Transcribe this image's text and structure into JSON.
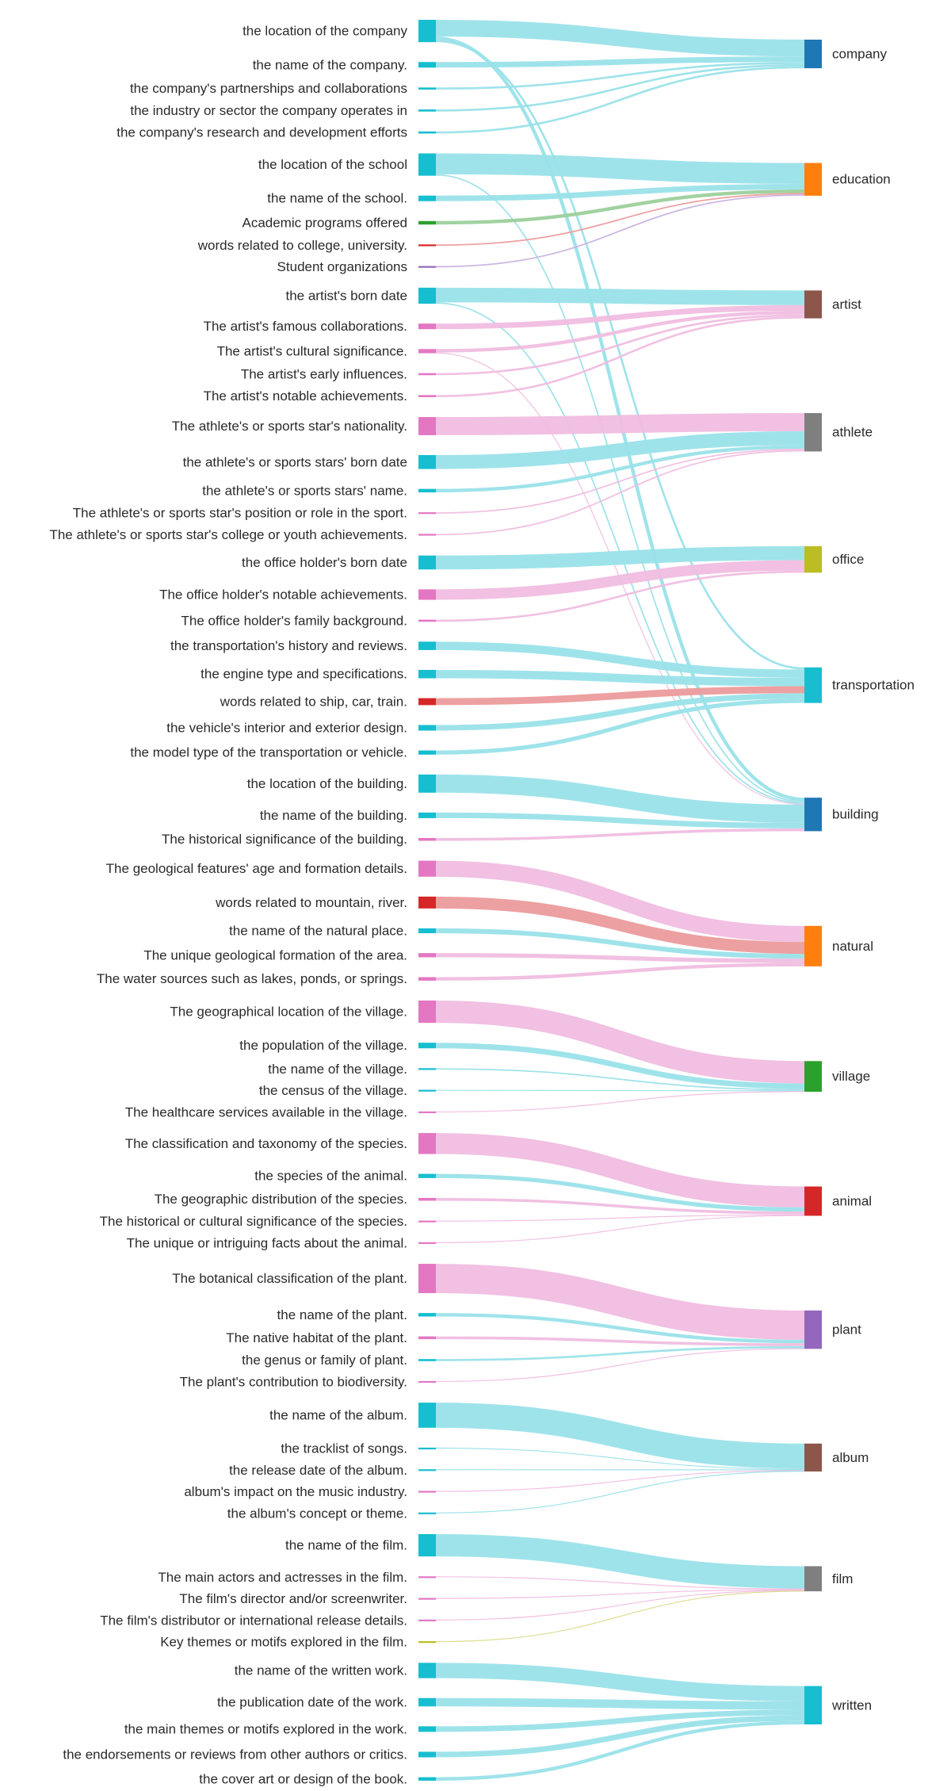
{
  "chart_data": {
    "type": "sankey",
    "targets": [
      {
        "name": "company",
        "color": "#1f77b4"
      },
      {
        "name": "education",
        "color": "#ff7f0e"
      },
      {
        "name": "artist",
        "color": "#8c564b"
      },
      {
        "name": "athlete",
        "color": "#7f7f7f"
      },
      {
        "name": "office",
        "color": "#bcbd22"
      },
      {
        "name": "transportation",
        "color": "#17becf"
      },
      {
        "name": "building",
        "color": "#1f77b4"
      },
      {
        "name": "natural",
        "color": "#ff7f0e"
      },
      {
        "name": "village",
        "color": "#2ca02c"
      },
      {
        "name": "animal",
        "color": "#d62728"
      },
      {
        "name": "plant",
        "color": "#9467bd"
      },
      {
        "name": "album",
        "color": "#8c564b"
      },
      {
        "name": "film",
        "color": "#7f7f7f"
      },
      {
        "name": "written",
        "color": "#17becf"
      }
    ],
    "sources": [
      {
        "label": "the location of the company",
        "color": "#17becf",
        "links": [
          {
            "target": "company",
            "value": 24
          },
          {
            "target": "building",
            "value": 5
          },
          {
            "target": "transportation",
            "value": 3
          }
        ]
      },
      {
        "label": "the name of the company.",
        "color": "#17becf",
        "links": [
          {
            "target": "company",
            "value": 8
          }
        ]
      },
      {
        "label": "the company's partnerships and collaborations",
        "color": "#17becf",
        "links": [
          {
            "target": "company",
            "value": 3
          }
        ]
      },
      {
        "label": "the industry or sector the company operates in",
        "color": "#17becf",
        "links": [
          {
            "target": "company",
            "value": 3
          }
        ]
      },
      {
        "label": "the company's research and development efforts",
        "color": "#17becf",
        "links": [
          {
            "target": "company",
            "value": 3
          }
        ]
      },
      {
        "label": "the location of the school",
        "color": "#17becf",
        "links": [
          {
            "target": "education",
            "value": 30
          },
          {
            "target": "building",
            "value": 2
          }
        ]
      },
      {
        "label": "the name of the school.",
        "color": "#17becf",
        "links": [
          {
            "target": "education",
            "value": 8
          }
        ]
      },
      {
        "label": "Academic programs offered",
        "color": "#2ca02c",
        "links": [
          {
            "target": "education",
            "value": 5
          }
        ]
      },
      {
        "label": "words related to college, university.",
        "color": "#d62728",
        "links": [
          {
            "target": "education",
            "value": 2
          }
        ]
      },
      {
        "label": "Student organizations",
        "color": "#9467bd",
        "links": [
          {
            "target": "education",
            "value": 2
          }
        ]
      },
      {
        "label": "the artist's born date",
        "color": "#17becf",
        "links": [
          {
            "target": "artist",
            "value": 21
          },
          {
            "target": "building",
            "value": 2
          }
        ]
      },
      {
        "label": "The artist's famous collaborations.",
        "color": "#e377c2",
        "links": [
          {
            "target": "artist",
            "value": 8
          }
        ]
      },
      {
        "label": "The artist's cultural significance.",
        "color": "#e377c2",
        "links": [
          {
            "target": "artist",
            "value": 5
          },
          {
            "target": "building",
            "value": 1
          }
        ]
      },
      {
        "label": "The artist's early influences.",
        "color": "#e377c2",
        "links": [
          {
            "target": "artist",
            "value": 3
          }
        ]
      },
      {
        "label": "The artist's notable achievements.",
        "color": "#e377c2",
        "links": [
          {
            "target": "artist",
            "value": 3
          }
        ]
      },
      {
        "label": "The athlete's or sports star's nationality.",
        "color": "#e377c2",
        "links": [
          {
            "target": "athlete",
            "value": 26
          }
        ]
      },
      {
        "label": "the athlete's or sports stars' born date",
        "color": "#17becf",
        "links": [
          {
            "target": "athlete",
            "value": 20
          }
        ]
      },
      {
        "label": "the athlete's or sports stars' name.",
        "color": "#17becf",
        "links": [
          {
            "target": "athlete",
            "value": 5
          }
        ]
      },
      {
        "label": "The athlete's or sports star's position or role in the sport.",
        "color": "#e377c2",
        "links": [
          {
            "target": "athlete",
            "value": 2
          }
        ]
      },
      {
        "label": "The athlete's or sports star's college or youth achievements.",
        "color": "#e377c2",
        "links": [
          {
            "target": "athlete",
            "value": 2
          }
        ]
      },
      {
        "label": "the office holder's born date",
        "color": "#17becf",
        "links": [
          {
            "target": "office",
            "value": 20
          }
        ]
      },
      {
        "label": "The office holder's notable achievements.",
        "color": "#e377c2",
        "links": [
          {
            "target": "office",
            "value": 15
          }
        ]
      },
      {
        "label": "The office holder's family background.",
        "color": "#e377c2",
        "links": [
          {
            "target": "office",
            "value": 3
          }
        ]
      },
      {
        "label": "the transportation's history and reviews.",
        "color": "#17becf",
        "links": [
          {
            "target": "transportation",
            "value": 12
          }
        ]
      },
      {
        "label": "the engine type and specifications.",
        "color": "#17becf",
        "links": [
          {
            "target": "transportation",
            "value": 12
          }
        ]
      },
      {
        "label": "words related to ship, car, train.",
        "color": "#d62728",
        "links": [
          {
            "target": "transportation",
            "value": 10
          }
        ]
      },
      {
        "label": "the vehicle's interior and exterior design.",
        "color": "#17becf",
        "links": [
          {
            "target": "transportation",
            "value": 8
          }
        ]
      },
      {
        "label": "the model type of the transportation or vehicle.",
        "color": "#17becf",
        "links": [
          {
            "target": "transportation",
            "value": 6
          }
        ]
      },
      {
        "label": "the location of the building.",
        "color": "#17becf",
        "links": [
          {
            "target": "building",
            "value": 26
          }
        ]
      },
      {
        "label": "the name of the building.",
        "color": "#17becf",
        "links": [
          {
            "target": "building",
            "value": 8
          }
        ]
      },
      {
        "label": "The historical significance of the building.",
        "color": "#e377c2",
        "links": [
          {
            "target": "building",
            "value": 4
          }
        ]
      },
      {
        "label": "The geological features' age and formation details.",
        "color": "#e377c2",
        "links": [
          {
            "target": "natural",
            "value": 23
          }
        ]
      },
      {
        "label": "words related to mountain, river.",
        "color": "#d62728",
        "links": [
          {
            "target": "natural",
            "value": 17
          }
        ]
      },
      {
        "label": "the name of the natural place.",
        "color": "#17becf",
        "links": [
          {
            "target": "natural",
            "value": 7
          }
        ]
      },
      {
        "label": "The unique geological formation of the area.",
        "color": "#e377c2",
        "links": [
          {
            "target": "natural",
            "value": 6
          }
        ]
      },
      {
        "label": "The water sources such as lakes, ponds, or springs.",
        "color": "#e377c2",
        "links": [
          {
            "target": "natural",
            "value": 5
          }
        ]
      },
      {
        "label": "The geographical location of the village.",
        "color": "#e377c2",
        "links": [
          {
            "target": "village",
            "value": 32
          }
        ]
      },
      {
        "label": "the population of the village.",
        "color": "#17becf",
        "links": [
          {
            "target": "village",
            "value": 8
          }
        ]
      },
      {
        "label": "the name of the village.",
        "color": "#17becf",
        "links": [
          {
            "target": "village",
            "value": 2
          }
        ]
      },
      {
        "label": "the census of the village.",
        "color": "#17becf",
        "links": [
          {
            "target": "village",
            "value": 1
          }
        ]
      },
      {
        "label": "The healthcare services available in the village.",
        "color": "#e377c2",
        "links": [
          {
            "target": "village",
            "value": 1
          }
        ]
      },
      {
        "label": "The classification and taxonomy of the species.",
        "color": "#e377c2",
        "links": [
          {
            "target": "animal",
            "value": 30
          }
        ]
      },
      {
        "label": "the species of the animal.",
        "color": "#17becf",
        "links": [
          {
            "target": "animal",
            "value": 6
          }
        ]
      },
      {
        "label": "The geographic distribution of the species.",
        "color": "#e377c2",
        "links": [
          {
            "target": "animal",
            "value": 4
          }
        ]
      },
      {
        "label": "The historical or cultural significance of the species.",
        "color": "#e377c2",
        "links": [
          {
            "target": "animal",
            "value": 1
          }
        ]
      },
      {
        "label": "The unique or intriguing facts about the animal.",
        "color": "#e377c2",
        "links": [
          {
            "target": "animal",
            "value": 1
          }
        ]
      },
      {
        "label": "The botanical classification of the plant.",
        "color": "#e377c2",
        "links": [
          {
            "target": "plant",
            "value": 42
          }
        ]
      },
      {
        "label": "the name of the plant.",
        "color": "#17becf",
        "links": [
          {
            "target": "plant",
            "value": 5
          }
        ]
      },
      {
        "label": "The native habitat of the plant.",
        "color": "#e377c2",
        "links": [
          {
            "target": "plant",
            "value": 4
          }
        ]
      },
      {
        "label": "the genus or family of plant.",
        "color": "#17becf",
        "links": [
          {
            "target": "plant",
            "value": 3
          }
        ]
      },
      {
        "label": "The plant's contribution to biodiversity.",
        "color": "#e377c2",
        "links": [
          {
            "target": "plant",
            "value": 1
          }
        ]
      },
      {
        "label": "the name of the album.",
        "color": "#17becf",
        "links": [
          {
            "target": "album",
            "value": 36
          }
        ]
      },
      {
        "label": "the tracklist of songs.",
        "color": "#17becf",
        "links": [
          {
            "target": "album",
            "value": 1
          }
        ]
      },
      {
        "label": "the release date of the album.",
        "color": "#17becf",
        "links": [
          {
            "target": "album",
            "value": 1
          }
        ]
      },
      {
        "label": "album's impact on the music industry.",
        "color": "#e377c2",
        "links": [
          {
            "target": "album",
            "value": 1
          }
        ]
      },
      {
        "label": "the album's concept or theme.",
        "color": "#17becf",
        "links": [
          {
            "target": "album",
            "value": 1
          }
        ]
      },
      {
        "label": "the name of the film.",
        "color": "#17becf",
        "links": [
          {
            "target": "film",
            "value": 32
          }
        ]
      },
      {
        "label": "The main actors and actresses in the film.",
        "color": "#e377c2",
        "links": [
          {
            "target": "film",
            "value": 1
          }
        ]
      },
      {
        "label": "The film's director and/or screenwriter.",
        "color": "#e377c2",
        "links": [
          {
            "target": "film",
            "value": 1
          }
        ]
      },
      {
        "label": "The film's distributor or international release details.",
        "color": "#e377c2",
        "links": [
          {
            "target": "film",
            "value": 1
          }
        ]
      },
      {
        "label": "Key themes or motifs explored in the film.",
        "color": "#bcbd22",
        "links": [
          {
            "target": "film",
            "value": 1
          }
        ]
      },
      {
        "label": "the name of the written work.",
        "color": "#17becf",
        "links": [
          {
            "target": "written",
            "value": 22
          }
        ]
      },
      {
        "label": "the publication date of the work.",
        "color": "#17becf",
        "links": [
          {
            "target": "written",
            "value": 12
          }
        ]
      },
      {
        "label": "the main themes or motifs explored in the work.",
        "color": "#17becf",
        "links": [
          {
            "target": "written",
            "value": 8
          }
        ]
      },
      {
        "label": "the endorsements or reviews from other authors or critics.",
        "color": "#17becf",
        "links": [
          {
            "target": "written",
            "value": 8
          }
        ]
      },
      {
        "label": "the cover art or design of the book.",
        "color": "#17becf",
        "links": [
          {
            "target": "written",
            "value": 5
          }
        ]
      }
    ]
  }
}
